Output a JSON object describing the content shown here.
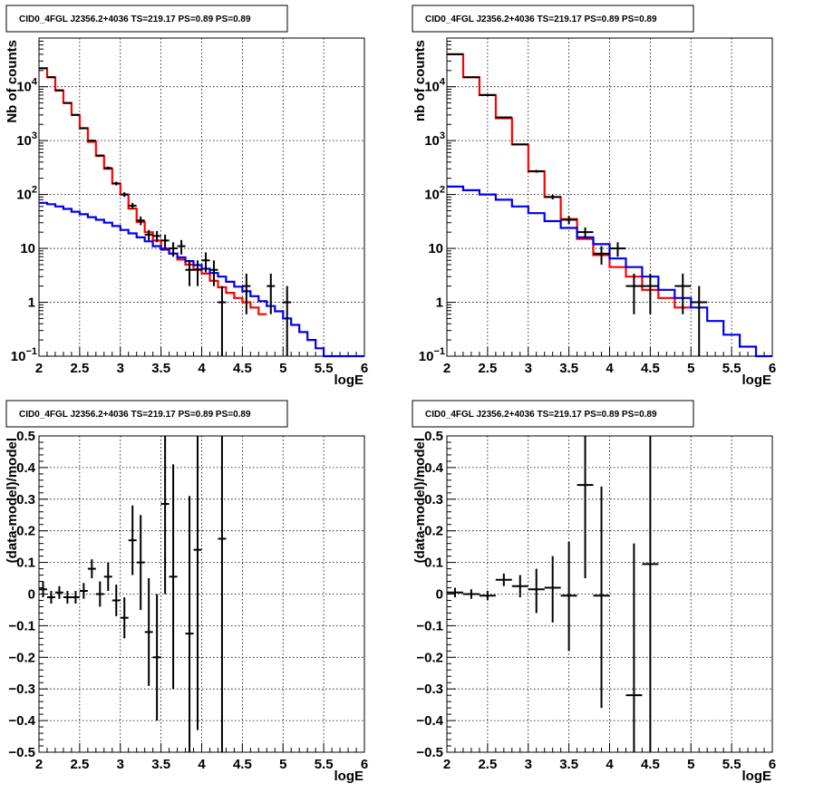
{
  "chart_data": [
    {
      "type": "line",
      "title": "CID0_4FGL J2356.2+4036 TS=219.17 PS=0.89 PS=0.89",
      "xlabel": "logE",
      "ylabel": "Nb of counts",
      "xlim": [
        2,
        6
      ],
      "ylim": [
        0.1,
        80000
      ],
      "yscale": "log",
      "grid": true,
      "xticks": [
        "2",
        "2.5",
        "3",
        "3.5",
        "4",
        "4.5",
        "5",
        "5.5",
        "6"
      ],
      "yticks": [
        {
          "v": 0.1,
          "label": "10",
          "exp": "−1"
        },
        {
          "v": 1,
          "label": "1",
          "exp": ""
        },
        {
          "v": 10,
          "label": "10",
          "exp": ""
        },
        {
          "v": 100,
          "label": "10",
          "exp": "2"
        },
        {
          "v": 1000,
          "label": "10",
          "exp": "3"
        },
        {
          "v": 10000,
          "label": "10",
          "exp": "4"
        }
      ],
      "bin_edges": [
        2.0,
        2.1,
        2.2,
        2.3,
        2.4,
        2.5,
        2.6,
        2.7,
        2.8,
        2.9,
        3.0,
        3.1,
        3.2,
        3.3,
        3.4,
        3.5,
        3.6,
        3.7,
        3.8,
        3.9,
        4.0,
        4.1,
        4.2,
        4.3,
        4.4,
        4.5,
        4.6,
        4.7,
        4.8,
        4.9,
        5.0,
        5.1,
        5.2,
        5.3,
        5.4,
        5.5,
        5.6,
        5.7,
        5.8,
        5.9,
        6.0
      ],
      "series": [
        {
          "color": "#ff0000",
          "kind": "step",
          "values": [
            22000,
            15000,
            8500,
            5000,
            3000,
            1700,
            950,
            520,
            300,
            160,
            100,
            55,
            31,
            20,
            14,
            10,
            8,
            6.2,
            5,
            4.1,
            3.4,
            2.5,
            1.9,
            1.5,
            1.2,
            1,
            0.8,
            0.6
          ]
        },
        {
          "color": "#0000ee",
          "kind": "step",
          "values": [
            70,
            66,
            60,
            54,
            48,
            43,
            38,
            34,
            30,
            26,
            22,
            19,
            16,
            13.5,
            11,
            9.5,
            8,
            6.8,
            5.8,
            4.9,
            4.2,
            3.5,
            3,
            2.4,
            1.95,
            1.6,
            1.3,
            1.05,
            0.85,
            0.68,
            0.5,
            0.38,
            0.28,
            0.2,
            0.14,
            0.1,
            0.1,
            0.1,
            0.1,
            0.1
          ]
        },
        {
          "color": "#000000",
          "kind": "errorbar",
          "points": [
            {
              "x": 2.05,
              "y": 22000,
              "lo": 21800,
              "hi": 22200
            },
            {
              "x": 2.15,
              "y": 15000,
              "lo": 14850,
              "hi": 15150
            },
            {
              "x": 2.25,
              "y": 8600,
              "lo": 8500,
              "hi": 8700
            },
            {
              "x": 2.35,
              "y": 5000,
              "lo": 4930,
              "hi": 5070
            },
            {
              "x": 2.45,
              "y": 3000,
              "lo": 2950,
              "hi": 3050
            },
            {
              "x": 2.55,
              "y": 1700,
              "lo": 1660,
              "hi": 1740
            },
            {
              "x": 2.65,
              "y": 1000,
              "lo": 970,
              "hi": 1030
            },
            {
              "x": 2.75,
              "y": 530,
              "lo": 510,
              "hi": 550
            },
            {
              "x": 2.85,
              "y": 310,
              "lo": 290,
              "hi": 330
            },
            {
              "x": 2.95,
              "y": 160,
              "lo": 147,
              "hi": 173
            },
            {
              "x": 3.05,
              "y": 100,
              "lo": 90,
              "hi": 110
            },
            {
              "x": 3.15,
              "y": 62,
              "lo": 54,
              "hi": 70
            },
            {
              "x": 3.25,
              "y": 33,
              "lo": 27,
              "hi": 39
            },
            {
              "x": 3.35,
              "y": 18,
              "lo": 14,
              "hi": 22
            },
            {
              "x": 3.45,
              "y": 17,
              "lo": 13,
              "hi": 21
            },
            {
              "x": 3.55,
              "y": 14,
              "lo": 10,
              "hi": 18
            },
            {
              "x": 3.65,
              "y": 10,
              "lo": 7,
              "hi": 13
            },
            {
              "x": 3.75,
              "y": 11,
              "lo": 7.7,
              "hi": 14.3
            },
            {
              "x": 3.85,
              "y": 4,
              "lo": 2,
              "hi": 6
            },
            {
              "x": 3.95,
              "y": 4,
              "lo": 2,
              "hi": 6
            },
            {
              "x": 4.05,
              "y": 6,
              "lo": 3.6,
              "hi": 8.4
            },
            {
              "x": 4.15,
              "y": 4,
              "lo": 2,
              "hi": 6
            },
            {
              "x": 4.25,
              "y": 1,
              "lo": 0.1,
              "hi": 2
            },
            {
              "x": 4.55,
              "y": 2,
              "lo": 0.6,
              "hi": 3.4
            },
            {
              "x": 4.85,
              "y": 2,
              "lo": 0.6,
              "hi": 3.4
            },
            {
              "x": 5.05,
              "y": 1,
              "lo": 0.1,
              "hi": 2
            }
          ]
        }
      ]
    },
    {
      "type": "line",
      "title": "CID0_4FGL J2356.2+4036 TS=219.17 PS=0.89 PS=0.89",
      "xlabel": "logE",
      "ylabel": "nb of counts",
      "xlim": [
        2,
        6
      ],
      "ylim": [
        0.1,
        80000
      ],
      "yscale": "log",
      "grid": true,
      "xticks": [
        "2",
        "2.5",
        "3",
        "3.5",
        "4",
        "4.5",
        "5",
        "5.5",
        "6"
      ],
      "yticks": [
        {
          "v": 0.1,
          "label": "10",
          "exp": "−1"
        },
        {
          "v": 1,
          "label": "1",
          "exp": ""
        },
        {
          "v": 10,
          "label": "10",
          "exp": ""
        },
        {
          "v": 100,
          "label": "10",
          "exp": "2"
        },
        {
          "v": 1000,
          "label": "10",
          "exp": "3"
        },
        {
          "v": 10000,
          "label": "10",
          "exp": "4"
        }
      ],
      "bin_edges": [
        2.0,
        2.2,
        2.4,
        2.6,
        2.8,
        3.0,
        3.2,
        3.4,
        3.6,
        3.8,
        4.0,
        4.2,
        4.4,
        4.6,
        4.8,
        5.0,
        5.2,
        5.4,
        5.6,
        5.8,
        6.0
      ],
      "series": [
        {
          "color": "#ff0000",
          "kind": "step",
          "values": [
            40000,
            15000,
            7000,
            2600,
            850,
            270,
            90,
            35,
            15,
            7.5,
            4.5,
            3,
            1.7,
            1.2,
            0.8
          ]
        },
        {
          "color": "#0000ee",
          "kind": "step",
          "values": [
            140,
            120,
            100,
            80,
            60,
            45,
            32,
            24,
            16,
            12,
            6.5,
            4.5,
            3,
            1.7,
            1.2,
            0.8,
            0.45,
            0.25,
            0.15,
            0.1
          ]
        },
        {
          "color": "#000000",
          "kind": "errorbar",
          "points": [
            {
              "x": 2.1,
              "y": 40000,
              "lo": 39800,
              "hi": 40200
            },
            {
              "x": 2.3,
              "y": 15000,
              "lo": 14880,
              "hi": 15120
            },
            {
              "x": 2.5,
              "y": 7000,
              "lo": 6920,
              "hi": 7080
            },
            {
              "x": 2.7,
              "y": 2700,
              "lo": 2650,
              "hi": 2750
            },
            {
              "x": 2.9,
              "y": 850,
              "lo": 820,
              "hi": 880
            },
            {
              "x": 3.1,
              "y": 270,
              "lo": 254,
              "hi": 286
            },
            {
              "x": 3.3,
              "y": 90,
              "lo": 81,
              "hi": 99
            },
            {
              "x": 3.5,
              "y": 34,
              "lo": 28,
              "hi": 40
            },
            {
              "x": 3.7,
              "y": 20,
              "lo": 15.5,
              "hi": 24.5
            },
            {
              "x": 3.9,
              "y": 8,
              "lo": 5,
              "hi": 11
            },
            {
              "x": 4.1,
              "y": 10,
              "lo": 7,
              "hi": 13
            },
            {
              "x": 4.3,
              "y": 2,
              "lo": 0.6,
              "hi": 3.4
            },
            {
              "x": 4.5,
              "y": 2,
              "lo": 0.6,
              "hi": 3.4
            },
            {
              "x": 4.9,
              "y": 2,
              "lo": 0.6,
              "hi": 3.4
            },
            {
              "x": 5.1,
              "y": 1,
              "lo": 0.1,
              "hi": 2
            }
          ]
        }
      ]
    },
    {
      "type": "scatter",
      "title": "CID0_4FGL J2356.2+4036 TS=219.17 PS=0.89 PS=0.89",
      "xlabel": "logE",
      "ylabel": "(data-model)/model",
      "xlim": [
        2,
        6
      ],
      "ylim": [
        -0.5,
        0.5
      ],
      "yscale": "linear",
      "grid": true,
      "xticks": [
        "2",
        "2.5",
        "3",
        "3.5",
        "4",
        "4.5",
        "5",
        "5.5",
        "6"
      ],
      "yticks": [
        {
          "v": -0.5,
          "label": "−0.5"
        },
        {
          "v": -0.4,
          "label": "−0.4"
        },
        {
          "v": -0.3,
          "label": "−0.3"
        },
        {
          "v": -0.2,
          "label": "−0.2"
        },
        {
          "v": -0.1,
          "label": "−0.1"
        },
        {
          "v": 0,
          "label": "0"
        },
        {
          "v": 0.1,
          "label": "0.1"
        },
        {
          "v": 0.2,
          "label": "0.2"
        },
        {
          "v": 0.3,
          "label": "0.3"
        },
        {
          "v": 0.4,
          "label": "0.4"
        },
        {
          "v": 0.5,
          "label": "0.5"
        }
      ],
      "half_width": 0.05,
      "points": [
        {
          "x": 2.05,
          "y": 0.015,
          "lo": -0.01,
          "hi": 0.04
        },
        {
          "x": 2.15,
          "y": -0.01,
          "lo": -0.03,
          "hi": 0.01
        },
        {
          "x": 2.25,
          "y": 0.005,
          "lo": -0.015,
          "hi": 0.025
        },
        {
          "x": 2.35,
          "y": -0.01,
          "lo": -0.03,
          "hi": 0.01
        },
        {
          "x": 2.45,
          "y": -0.01,
          "lo": -0.03,
          "hi": 0.01
        },
        {
          "x": 2.55,
          "y": 0.01,
          "lo": -0.015,
          "hi": 0.035
        },
        {
          "x": 2.65,
          "y": 0.08,
          "lo": 0.05,
          "hi": 0.11
        },
        {
          "x": 2.75,
          "y": 0.0,
          "lo": -0.04,
          "hi": 0.04
        },
        {
          "x": 2.85,
          "y": 0.055,
          "lo": 0.01,
          "hi": 0.1
        },
        {
          "x": 2.95,
          "y": -0.02,
          "lo": -0.07,
          "hi": 0.03
        },
        {
          "x": 3.05,
          "y": -0.075,
          "lo": -0.14,
          "hi": -0.01
        },
        {
          "x": 3.15,
          "y": 0.17,
          "lo": 0.06,
          "hi": 0.28
        },
        {
          "x": 3.25,
          "y": 0.1,
          "lo": -0.05,
          "hi": 0.25
        },
        {
          "x": 3.35,
          "y": -0.12,
          "lo": -0.29,
          "hi": 0.05
        },
        {
          "x": 3.45,
          "y": -0.2,
          "lo": -0.4,
          "hi": 0.0
        },
        {
          "x": 3.55,
          "y": 0.285,
          "lo": 0.0,
          "hi": 0.5
        },
        {
          "x": 3.65,
          "y": 0.055,
          "lo": -0.3,
          "hi": 0.41
        },
        {
          "x": 3.85,
          "y": -0.125,
          "lo": -0.5,
          "hi": 0.31
        },
        {
          "x": 3.95,
          "y": 0.14,
          "lo": -0.43,
          "hi": 0.5
        },
        {
          "x": 4.25,
          "y": 0.175,
          "lo": -0.5,
          "hi": 0.5
        }
      ]
    },
    {
      "type": "scatter",
      "title": "CID0_4FGL J2356.2+4036 TS=219.17 PS=0.89 PS=0.89",
      "xlabel": "logE",
      "ylabel": "(data-model)/model",
      "xlim": [
        2,
        6
      ],
      "ylim": [
        -0.5,
        0.5
      ],
      "yscale": "linear",
      "grid": true,
      "xticks": [
        "2",
        "2.5",
        "3",
        "3.5",
        "4",
        "4.5",
        "5",
        "5.5",
        "6"
      ],
      "yticks": [
        {
          "v": -0.5,
          "label": "−0.5"
        },
        {
          "v": -0.4,
          "label": "−0.4"
        },
        {
          "v": -0.3,
          "label": "−0.3"
        },
        {
          "v": -0.2,
          "label": "−0.2"
        },
        {
          "v": -0.1,
          "label": "−0.1"
        },
        {
          "v": 0,
          "label": "0"
        },
        {
          "v": 0.1,
          "label": "0.1"
        },
        {
          "v": 0.2,
          "label": "0.2"
        },
        {
          "v": 0.3,
          "label": "0.3"
        },
        {
          "v": 0.4,
          "label": "0.4"
        },
        {
          "v": 0.5,
          "label": "0.5"
        }
      ],
      "half_width": 0.1,
      "points": [
        {
          "x": 2.1,
          "y": 0.005,
          "lo": -0.01,
          "hi": 0.02
        },
        {
          "x": 2.3,
          "y": 0.0,
          "lo": -0.015,
          "hi": 0.015
        },
        {
          "x": 2.5,
          "y": -0.005,
          "lo": -0.02,
          "hi": 0.01
        },
        {
          "x": 2.7,
          "y": 0.045,
          "lo": 0.025,
          "hi": 0.065
        },
        {
          "x": 2.9,
          "y": 0.025,
          "lo": -0.01,
          "hi": 0.06
        },
        {
          "x": 3.1,
          "y": 0.015,
          "lo": -0.06,
          "hi": 0.08
        },
        {
          "x": 3.3,
          "y": 0.02,
          "lo": -0.09,
          "hi": 0.12
        },
        {
          "x": 3.5,
          "y": -0.005,
          "lo": -0.18,
          "hi": 0.165
        },
        {
          "x": 3.7,
          "y": 0.345,
          "lo": 0.05,
          "hi": 0.5
        },
        {
          "x": 3.9,
          "y": -0.005,
          "lo": -0.36,
          "hi": 0.34
        },
        {
          "x": 4.3,
          "y": -0.32,
          "lo": -0.5,
          "hi": 0.16
        },
        {
          "x": 4.5,
          "y": 0.095,
          "lo": -0.5,
          "hi": 0.5
        }
      ]
    }
  ]
}
